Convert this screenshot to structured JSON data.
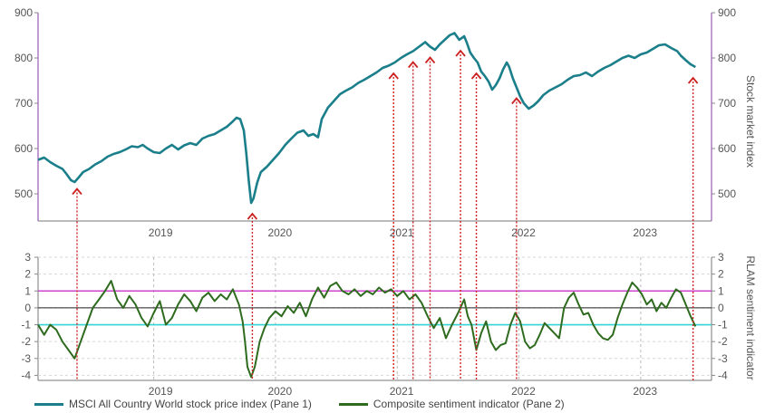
{
  "chart_data": [
    {
      "type": "line",
      "pane": 1,
      "ylabel": "Stock market index",
      "ylim": [
        440,
        900
      ],
      "yticks": [
        500,
        600,
        700,
        800,
        900
      ],
      "x_labels": [
        "2019",
        "2020",
        "2021",
        "2022",
        "2023"
      ],
      "color": "#1a7f8a",
      "series": [
        {
          "name": "MSCI All Country World stock price index (Pane 1)",
          "points": [
            [
              2018.5,
              575
            ],
            [
              2018.55,
              580
            ],
            [
              2018.6,
              570
            ],
            [
              2018.65,
              562
            ],
            [
              2018.7,
              555
            ],
            [
              2018.73,
              545
            ],
            [
              2018.77,
              530
            ],
            [
              2018.8,
              526
            ],
            [
              2018.83,
              535
            ],
            [
              2018.87,
              548
            ],
            [
              2018.92,
              555
            ],
            [
              2018.97,
              565
            ],
            [
              2019.02,
              572
            ],
            [
              2019.07,
              582
            ],
            [
              2019.12,
              588
            ],
            [
              2019.17,
              592
            ],
            [
              2019.22,
              598
            ],
            [
              2019.27,
              605
            ],
            [
              2019.32,
              603
            ],
            [
              2019.36,
              608
            ],
            [
              2019.4,
              600
            ],
            [
              2019.45,
              592
            ],
            [
              2019.5,
              590
            ],
            [
              2019.55,
              600
            ],
            [
              2019.6,
              608
            ],
            [
              2019.65,
              598
            ],
            [
              2019.7,
              607
            ],
            [
              2019.75,
              612
            ],
            [
              2019.8,
              608
            ],
            [
              2019.85,
              622
            ],
            [
              2019.9,
              628
            ],
            [
              2019.95,
              632
            ],
            [
              2020.0,
              640
            ],
            [
              2020.05,
              648
            ],
            [
              2020.1,
              660
            ],
            [
              2020.13,
              668
            ],
            [
              2020.16,
              665
            ],
            [
              2020.19,
              640
            ],
            [
              2020.21,
              590
            ],
            [
              2020.23,
              530
            ],
            [
              2020.25,
              480
            ],
            [
              2020.27,
              490
            ],
            [
              2020.3,
              525
            ],
            [
              2020.33,
              548
            ],
            [
              2020.38,
              560
            ],
            [
              2020.43,
              575
            ],
            [
              2020.48,
              590
            ],
            [
              2020.53,
              608
            ],
            [
              2020.58,
              622
            ],
            [
              2020.63,
              635
            ],
            [
              2020.68,
              640
            ],
            [
              2020.72,
              628
            ],
            [
              2020.76,
              632
            ],
            [
              2020.8,
              625
            ],
            [
              2020.83,
              665
            ],
            [
              2020.88,
              690
            ],
            [
              2020.93,
              705
            ],
            [
              2020.98,
              720
            ],
            [
              2021.03,
              728
            ],
            [
              2021.08,
              735
            ],
            [
              2021.13,
              745
            ],
            [
              2021.18,
              752
            ],
            [
              2021.23,
              760
            ],
            [
              2021.28,
              768
            ],
            [
              2021.33,
              778
            ],
            [
              2021.38,
              783
            ],
            [
              2021.43,
              790
            ],
            [
              2021.48,
              800
            ],
            [
              2021.53,
              808
            ],
            [
              2021.58,
              815
            ],
            [
              2021.63,
              825
            ],
            [
              2021.68,
              835
            ],
            [
              2021.72,
              825
            ],
            [
              2021.76,
              818
            ],
            [
              2021.8,
              830
            ],
            [
              2021.84,
              840
            ],
            [
              2021.88,
              850
            ],
            [
              2021.92,
              855
            ],
            [
              2021.96,
              840
            ],
            [
              2022.0,
              848
            ],
            [
              2022.02,
              835
            ],
            [
              2022.05,
              812
            ],
            [
              2022.08,
              800
            ],
            [
              2022.11,
              790
            ],
            [
              2022.14,
              770
            ],
            [
              2022.17,
              760
            ],
            [
              2022.2,
              748
            ],
            [
              2022.23,
              730
            ],
            [
              2022.26,
              740
            ],
            [
              2022.29,
              755
            ],
            [
              2022.32,
              775
            ],
            [
              2022.35,
              790
            ],
            [
              2022.37,
              780
            ],
            [
              2022.4,
              755
            ],
            [
              2022.43,
              735
            ],
            [
              2022.46,
              715
            ],
            [
              2022.49,
              700
            ],
            [
              2022.53,
              688
            ],
            [
              2022.57,
              695
            ],
            [
              2022.61,
              705
            ],
            [
              2022.65,
              718
            ],
            [
              2022.7,
              728
            ],
            [
              2022.75,
              735
            ],
            [
              2022.8,
              742
            ],
            [
              2022.85,
              752
            ],
            [
              2022.9,
              760
            ],
            [
              2022.95,
              762
            ],
            [
              2023.0,
              768
            ],
            [
              2023.05,
              760
            ],
            [
              2023.1,
              770
            ],
            [
              2023.15,
              778
            ],
            [
              2023.2,
              784
            ],
            [
              2023.25,
              792
            ],
            [
              2023.3,
              800
            ],
            [
              2023.35,
              805
            ],
            [
              2023.4,
              800
            ],
            [
              2023.45,
              808
            ],
            [
              2023.5,
              812
            ],
            [
              2023.55,
              820
            ],
            [
              2023.6,
              828
            ],
            [
              2023.65,
              830
            ],
            [
              2023.7,
              822
            ],
            [
              2023.75,
              815
            ],
            [
              2023.78,
              805
            ],
            [
              2023.82,
              795
            ],
            [
              2023.86,
              786
            ],
            [
              2023.9,
              780
            ]
          ]
        }
      ]
    },
    {
      "type": "line",
      "pane": 2,
      "ylabel": "RLAM sentiment indicator",
      "ylim": [
        -4.3,
        3
      ],
      "yticks": [
        3,
        2,
        1,
        0,
        -1,
        -2,
        -3,
        -4
      ],
      "right_yticks": [
        3,
        2,
        1,
        0,
        -1,
        -2,
        -3,
        -4
      ],
      "x_labels": [
        "2019",
        "2020",
        "2021",
        "2022",
        "2023"
      ],
      "color": "#2e6b1f",
      "reference_lines": [
        {
          "value": 1,
          "color": "#cc44cc"
        },
        {
          "value": 0,
          "color": "#222222"
        },
        {
          "value": -1,
          "color": "#35d3d3"
        }
      ],
      "series": [
        {
          "name": "Composite sentiment indicator (Pane 2)",
          "points": [
            [
              2018.5,
              -1.0
            ],
            [
              2018.55,
              -1.6
            ],
            [
              2018.6,
              -1.0
            ],
            [
              2018.65,
              -1.3
            ],
            [
              2018.7,
              -2.0
            ],
            [
              2018.75,
              -2.5
            ],
            [
              2018.8,
              -3.0
            ],
            [
              2018.85,
              -2.0
            ],
            [
              2018.9,
              -1.0
            ],
            [
              2018.95,
              0.0
            ],
            [
              2019.0,
              0.5
            ],
            [
              2019.05,
              1.0
            ],
            [
              2019.1,
              1.6
            ],
            [
              2019.15,
              0.5
            ],
            [
              2019.2,
              0.0
            ],
            [
              2019.25,
              0.7
            ],
            [
              2019.3,
              0.2
            ],
            [
              2019.35,
              -0.6
            ],
            [
              2019.4,
              -1.1
            ],
            [
              2019.45,
              -0.3
            ],
            [
              2019.5,
              0.4
            ],
            [
              2019.55,
              -1.0
            ],
            [
              2019.6,
              -0.6
            ],
            [
              2019.65,
              0.2
            ],
            [
              2019.7,
              0.8
            ],
            [
              2019.75,
              0.4
            ],
            [
              2019.8,
              -0.2
            ],
            [
              2019.85,
              0.6
            ],
            [
              2019.9,
              0.9
            ],
            [
              2019.95,
              0.4
            ],
            [
              2020.0,
              0.8
            ],
            [
              2020.05,
              0.5
            ],
            [
              2020.1,
              1.1
            ],
            [
              2020.15,
              0.2
            ],
            [
              2020.18,
              -0.8
            ],
            [
              2020.2,
              -2.0
            ],
            [
              2020.22,
              -3.5
            ],
            [
              2020.25,
              -4.1
            ],
            [
              2020.28,
              -3.5
            ],
            [
              2020.32,
              -2.0
            ],
            [
              2020.36,
              -1.2
            ],
            [
              2020.4,
              -0.6
            ],
            [
              2020.45,
              -0.2
            ],
            [
              2020.5,
              -0.5
            ],
            [
              2020.55,
              0.1
            ],
            [
              2020.6,
              -0.3
            ],
            [
              2020.65,
              0.3
            ],
            [
              2020.7,
              -0.5
            ],
            [
              2020.75,
              0.5
            ],
            [
              2020.8,
              1.2
            ],
            [
              2020.85,
              0.6
            ],
            [
              2020.9,
              1.3
            ],
            [
              2020.95,
              1.5
            ],
            [
              2021.0,
              1.0
            ],
            [
              2021.05,
              0.8
            ],
            [
              2021.1,
              1.1
            ],
            [
              2021.15,
              0.7
            ],
            [
              2021.2,
              1.0
            ],
            [
              2021.25,
              0.8
            ],
            [
              2021.3,
              1.2
            ],
            [
              2021.35,
              0.9
            ],
            [
              2021.4,
              1.1
            ],
            [
              2021.45,
              0.7
            ],
            [
              2021.5,
              1.0
            ],
            [
              2021.55,
              0.5
            ],
            [
              2021.6,
              0.8
            ],
            [
              2021.65,
              0.3
            ],
            [
              2021.7,
              -0.5
            ],
            [
              2021.75,
              -1.2
            ],
            [
              2021.8,
              -0.6
            ],
            [
              2021.85,
              -1.8
            ],
            [
              2021.9,
              -1.0
            ],
            [
              2021.95,
              -0.3
            ],
            [
              2022.0,
              0.5
            ],
            [
              2022.03,
              -0.5
            ],
            [
              2022.06,
              -1.0
            ],
            [
              2022.1,
              -2.5
            ],
            [
              2022.14,
              -1.5
            ],
            [
              2022.18,
              -0.8
            ],
            [
              2022.22,
              -2.0
            ],
            [
              2022.26,
              -2.5
            ],
            [
              2022.3,
              -2.2
            ],
            [
              2022.34,
              -2.1
            ],
            [
              2022.38,
              -1.0
            ],
            [
              2022.42,
              -0.3
            ],
            [
              2022.46,
              -0.8
            ],
            [
              2022.5,
              -2.0
            ],
            [
              2022.54,
              -2.4
            ],
            [
              2022.58,
              -2.2
            ],
            [
              2022.62,
              -1.6
            ],
            [
              2022.66,
              -0.9
            ],
            [
              2022.7,
              -1.2
            ],
            [
              2022.74,
              -1.5
            ],
            [
              2022.78,
              -1.8
            ],
            [
              2022.82,
              0.0
            ],
            [
              2022.86,
              0.6
            ],
            [
              2022.9,
              0.9
            ],
            [
              2022.94,
              0.2
            ],
            [
              2022.98,
              -0.4
            ],
            [
              2023.02,
              -0.3
            ],
            [
              2023.06,
              -1.0
            ],
            [
              2023.1,
              -1.5
            ],
            [
              2023.14,
              -1.8
            ],
            [
              2023.18,
              -1.9
            ],
            [
              2023.22,
              -1.6
            ],
            [
              2023.26,
              -0.6
            ],
            [
              2023.3,
              0.2
            ],
            [
              2023.34,
              0.9
            ],
            [
              2023.38,
              1.5
            ],
            [
              2023.42,
              1.2
            ],
            [
              2023.46,
              0.8
            ],
            [
              2023.5,
              0.2
            ],
            [
              2023.54,
              0.5
            ],
            [
              2023.58,
              -0.2
            ],
            [
              2023.62,
              0.3
            ],
            [
              2023.66,
              0.0
            ],
            [
              2023.7,
              0.6
            ],
            [
              2023.74,
              1.1
            ],
            [
              2023.78,
              0.9
            ],
            [
              2023.82,
              0.2
            ],
            [
              2023.86,
              -0.5
            ],
            [
              2023.9,
              -1.1
            ]
          ]
        }
      ]
    }
  ],
  "arrow_dates": [
    2018.82,
    2020.26,
    2021.42,
    2021.58,
    2021.72,
    2021.97,
    2022.1,
    2022.43,
    2023.88
  ],
  "x_range": [
    2018.5,
    2023.92
  ],
  "year_labels": [
    {
      "label": "2019",
      "x": 2019.0
    },
    {
      "label": "2020",
      "x": 2019.98
    },
    {
      "label": "2021",
      "x": 2020.98
    },
    {
      "label": "2022",
      "x": 2021.98
    },
    {
      "label": "2023",
      "x": 2022.98
    }
  ],
  "legend": [
    {
      "label": "MSCI All Country World stock price index (Pane 1)",
      "color": "#1a7f8a"
    },
    {
      "label": "Composite sentiment indicator (Pane 2)",
      "color": "#2e6b1f"
    }
  ],
  "colors": {
    "arrow": "#cc2222",
    "axis_right": "#9b59b6",
    "frame": "#777777"
  }
}
